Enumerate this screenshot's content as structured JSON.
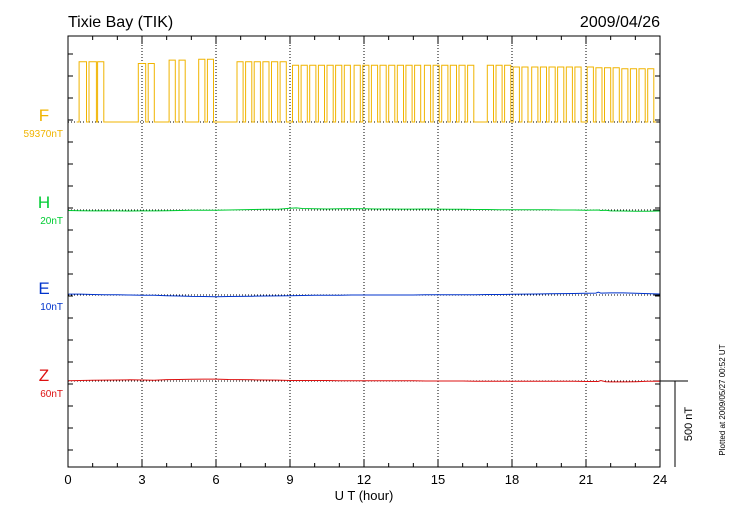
{
  "chart_data": {
    "type": "line",
    "title_left": "Tixie Bay (TIK)",
    "title_right": "2009/04/26",
    "xlabel": "U T (hour)",
    "xlim": [
      0,
      24
    ],
    "x_ticks": [
      "0",
      "3",
      "6",
      "9",
      "12",
      "15",
      "18",
      "21",
      "24"
    ],
    "scale_label": "500 nT",
    "plotted_note": "Plotted at 2009/05/27 00:52 UT",
    "grid": "vertical-dotted",
    "series": [
      {
        "name": "F",
        "baseline": "59370nT",
        "color": "#f0b400",
        "kind": "square",
        "segments": [
          [
            0.45,
            0.75
          ],
          [
            0.85,
            1.15
          ],
          [
            1.2,
            1.45
          ],
          [
            2.85,
            3.15
          ],
          [
            3.25,
            3.5
          ],
          [
            4.1,
            4.35
          ],
          [
            4.5,
            4.75
          ],
          [
            5.3,
            5.55
          ],
          [
            5.65,
            5.9
          ],
          [
            6.85,
            7.1
          ],
          [
            7.2,
            7.45
          ],
          [
            7.55,
            7.8
          ],
          [
            7.9,
            8.15
          ],
          [
            8.25,
            8.5
          ],
          [
            8.6,
            8.85
          ],
          [
            9.1,
            9.35
          ],
          [
            9.45,
            9.7
          ],
          [
            9.8,
            10.05
          ],
          [
            10.15,
            10.4
          ],
          [
            10.5,
            10.75
          ],
          [
            10.85,
            11.1
          ],
          [
            11.2,
            11.45
          ],
          [
            11.6,
            11.85
          ],
          [
            11.95,
            12.2
          ],
          [
            12.3,
            12.55
          ],
          [
            12.65,
            12.9
          ],
          [
            13.0,
            13.25
          ],
          [
            13.35,
            13.6
          ],
          [
            13.7,
            13.95
          ],
          [
            14.05,
            14.3
          ],
          [
            14.45,
            14.7
          ],
          [
            14.8,
            15.05
          ],
          [
            15.15,
            15.4
          ],
          [
            15.5,
            15.75
          ],
          [
            15.85,
            16.1
          ],
          [
            16.2,
            16.45
          ],
          [
            17.0,
            17.25
          ],
          [
            17.35,
            17.6
          ],
          [
            17.7,
            17.95
          ],
          [
            18.05,
            18.3
          ],
          [
            18.4,
            18.65
          ],
          [
            18.8,
            19.05
          ],
          [
            19.15,
            19.4
          ],
          [
            19.5,
            19.75
          ],
          [
            19.85,
            20.1
          ],
          [
            20.2,
            20.45
          ],
          [
            20.55,
            20.8
          ],
          [
            21.05,
            21.3
          ],
          [
            21.4,
            21.65
          ],
          [
            21.75,
            22.0
          ],
          [
            22.1,
            22.35
          ],
          [
            22.45,
            22.7
          ],
          [
            22.8,
            23.05
          ],
          [
            23.15,
            23.4
          ],
          [
            23.5,
            23.75
          ]
        ],
        "high_nT": [
          350,
          350,
          350,
          340,
          340,
          360,
          360,
          365,
          365,
          350,
          350,
          350,
          350,
          350,
          350,
          330,
          330,
          330,
          330,
          330,
          330,
          330,
          330,
          330,
          330,
          330,
          330,
          330,
          330,
          330,
          330,
          330,
          330,
          330,
          330,
          330,
          330,
          330,
          330,
          320,
          320,
          320,
          320,
          320,
          320,
          320,
          320,
          320,
          315,
          315,
          315,
          310,
          310,
          310,
          310
        ],
        "spike": {
          "x": 5.45,
          "value_nT": -55
        }
      },
      {
        "name": "H",
        "baseline": "20nT",
        "color": "#00cc33",
        "kind": "line",
        "x": [
          0.0,
          0.5,
          1.0,
          1.5,
          2.0,
          2.5,
          3.0,
          3.5,
          4.0,
          4.5,
          5.0,
          5.5,
          6.0,
          6.5,
          7.0,
          7.5,
          8.0,
          8.5,
          9.0,
          9.25,
          9.5,
          9.75,
          10.0,
          10.5,
          11.0,
          11.5,
          12.0,
          12.5,
          13.0,
          13.5,
          14.0,
          14.5,
          15.0,
          15.5,
          16.0,
          16.5,
          17.0,
          17.5,
          18.0,
          18.5,
          19.0,
          19.5,
          20.0,
          20.5,
          21.0,
          21.5,
          21.6,
          21.8,
          22.0,
          22.5,
          23.0,
          23.5,
          24.0
        ],
        "values_nT": [
          -3,
          -4,
          -5,
          -4,
          -5,
          -6,
          -5,
          -5,
          -4,
          -3,
          -2,
          -2,
          -1,
          0,
          2,
          3,
          4,
          4,
          10,
          12,
          9,
          8,
          7,
          6,
          7,
          8,
          7,
          6,
          6,
          5,
          5,
          6,
          5,
          4,
          4,
          3,
          3,
          2,
          2,
          2,
          1,
          1,
          0,
          0,
          -1,
          0,
          -3,
          -2,
          -5,
          -6,
          -7,
          -7,
          -6
        ]
      },
      {
        "name": "E",
        "baseline": "10nT",
        "color": "#0033cc",
        "kind": "line",
        "x": [
          0.0,
          0.5,
          1.0,
          1.5,
          2.0,
          2.5,
          3.0,
          3.5,
          4.0,
          4.5,
          5.0,
          5.5,
          6.0,
          6.5,
          7.0,
          7.5,
          8.0,
          8.5,
          9.0,
          9.5,
          10.0,
          10.5,
          11.0,
          11.5,
          12.0,
          12.5,
          13.0,
          13.5,
          14.0,
          14.5,
          15.0,
          15.5,
          16.0,
          16.5,
          17.0,
          17.5,
          18.0,
          18.5,
          19.0,
          19.5,
          20.0,
          20.5,
          21.0,
          21.4,
          21.5,
          21.6,
          22.0,
          22.5,
          23.0,
          23.5,
          24.0
        ],
        "values_nT": [
          5,
          5,
          3,
          2,
          1,
          0,
          -1,
          -2,
          -4,
          -6,
          -8,
          -9,
          -10,
          -9,
          -8,
          -7,
          -6,
          -5,
          -4,
          -3,
          -2,
          -1,
          -1,
          0,
          0,
          0,
          0,
          0,
          0,
          1,
          1,
          1,
          2,
          2,
          3,
          3,
          4,
          5,
          6,
          7,
          8,
          9,
          10,
          11,
          16,
          11,
          12,
          12,
          10,
          8,
          6
        ]
      },
      {
        "name": "Z",
        "baseline": "60nT",
        "color": "#dd1111",
        "kind": "line",
        "x": [
          0.0,
          0.5,
          1.0,
          1.5,
          2.0,
          2.5,
          3.0,
          3.5,
          4.0,
          4.5,
          5.0,
          5.5,
          6.0,
          6.5,
          7.0,
          7.5,
          8.0,
          8.5,
          9.0,
          9.5,
          10.0,
          10.5,
          11.0,
          11.5,
          12.0,
          12.5,
          13.0,
          13.5,
          14.0,
          14.5,
          15.0,
          15.5,
          16.0,
          16.5,
          17.0,
          17.5,
          18.0,
          18.5,
          19.0,
          19.5,
          20.0,
          20.5,
          21.0,
          21.5,
          21.6,
          21.8,
          22.0,
          22.5,
          23.0,
          23.5,
          24.0
        ],
        "values_nT": [
          2,
          3,
          4,
          5,
          6,
          7,
          6,
          4,
          8,
          9,
          10,
          11,
          11,
          9,
          8,
          7,
          6,
          5,
          3,
          3,
          3,
          3,
          2,
          2,
          2,
          2,
          1,
          1,
          1,
          0,
          0,
          0,
          0,
          -1,
          -1,
          -1,
          -1,
          -2,
          -2,
          -2,
          -2,
          -2,
          -3,
          -3,
          3,
          -4,
          -5,
          -5,
          -4,
          -2,
          -1
        ]
      }
    ]
  }
}
